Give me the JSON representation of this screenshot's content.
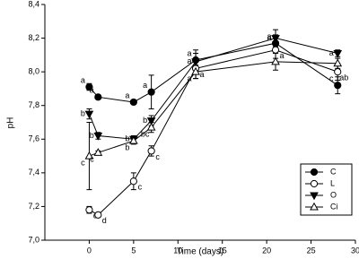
{
  "chart_data": {
    "type": "line",
    "x_label": "Time (days)",
    "y_label": "pH",
    "x": [
      0,
      1,
      5,
      7,
      12,
      21,
      28
    ],
    "xlim": [
      -5,
      30
    ],
    "xticks": [
      0,
      5,
      10,
      15,
      20,
      25,
      30
    ],
    "ylim": [
      7.0,
      8.4
    ],
    "yticks": [
      {
        "value": 7.0,
        "label": "7,0"
      },
      {
        "value": 7.2,
        "label": "7,2"
      },
      {
        "value": 7.4,
        "label": "7,4"
      },
      {
        "value": 7.6,
        "label": "7,6"
      },
      {
        "value": 7.8,
        "label": "7,8"
      },
      {
        "value": 8.0,
        "label": "8,0"
      },
      {
        "value": 8.2,
        "label": "8,2"
      },
      {
        "value": 8.4,
        "label": "8,4"
      }
    ],
    "legend_position": "lower right",
    "series": [
      {
        "name": "C",
        "marker": "circle",
        "filled": true,
        "color": "#000000",
        "values": [
          7.91,
          7.85,
          7.82,
          7.88,
          8.07,
          8.17,
          7.92
        ],
        "errors": [
          0.02,
          0.01,
          0.01,
          0.1,
          0.06,
          0.05,
          0.05
        ],
        "letters": [
          "a",
          "a",
          "a",
          "a",
          "a",
          "a",
          "c"
        ]
      },
      {
        "name": "L",
        "marker": "circle",
        "filled": false,
        "color": "#000000",
        "values": [
          7.18,
          7.15,
          7.35,
          7.53,
          8.02,
          8.13,
          8.0
        ],
        "errors": [
          0.02,
          0.01,
          0.05,
          0.03,
          0.06,
          0.05,
          0.05
        ],
        "letters": [
          "d",
          "d",
          "c",
          "c",
          "a",
          "a",
          "ab"
        ]
      },
      {
        "name": "O",
        "marker": "triangle-down",
        "filled": true,
        "color": "#000000",
        "values": [
          7.75,
          7.62,
          7.6,
          7.71,
          8.06,
          8.2,
          8.11
        ],
        "errors": [
          0.03,
          0.02,
          0.02,
          0.03,
          0.05,
          0.05,
          0.02
        ],
        "letters": [
          "b",
          "b",
          "b",
          "b",
          "a",
          "a",
          "a"
        ]
      },
      {
        "name": "Ci",
        "marker": "triangle-up",
        "filled": false,
        "color": "#000000",
        "values": [
          7.5,
          7.52,
          7.59,
          7.67,
          8.0,
          8.06,
          8.05
        ],
        "errors": [
          0.2,
          0.01,
          0.02,
          0.03,
          0.04,
          0.05,
          0.03
        ],
        "letters": [
          "c",
          "c",
          "b",
          "bc",
          "a",
          null,
          null
        ]
      }
    ]
  }
}
